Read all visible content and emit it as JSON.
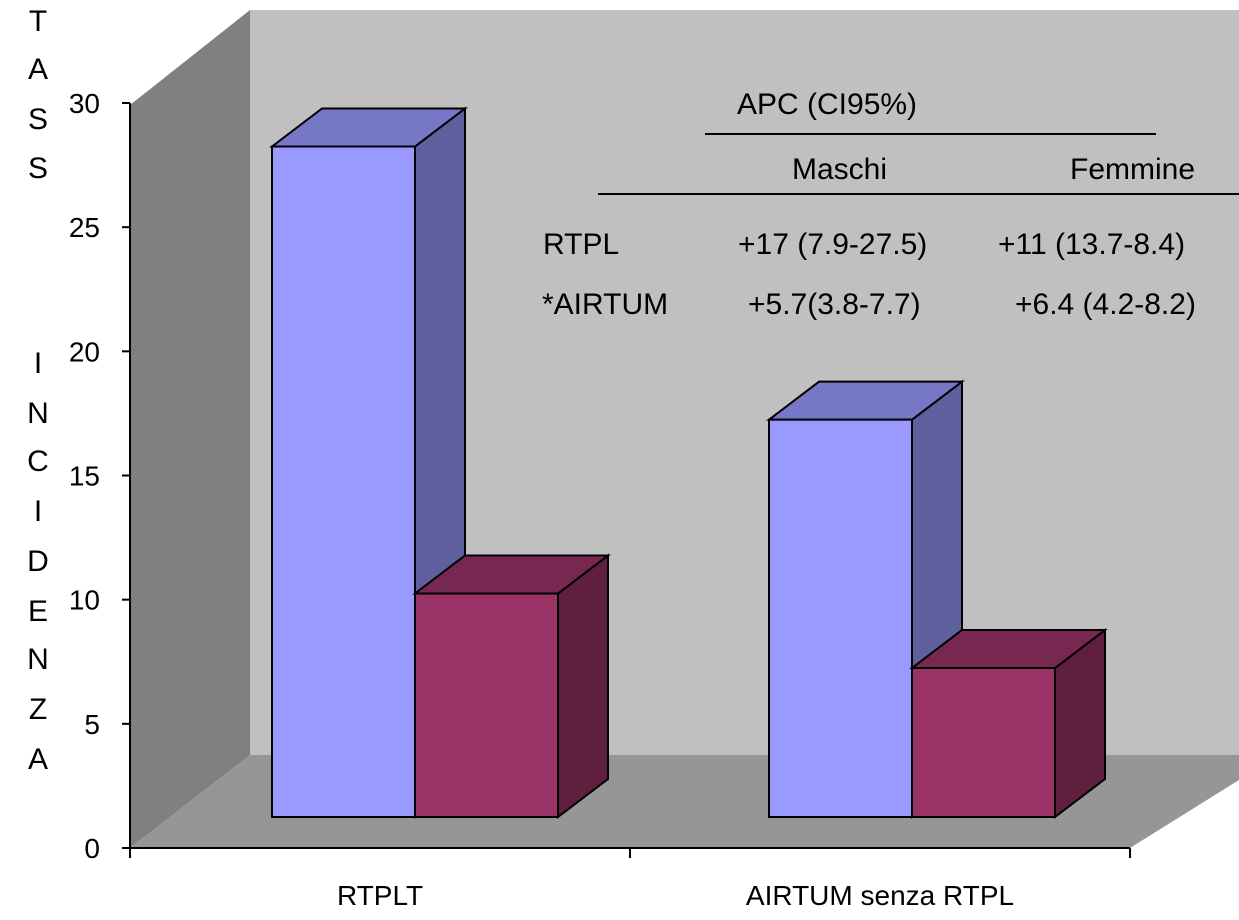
{
  "colors": {
    "series_1": "#9999ff",
    "series_2": "#993366",
    "wall": "#c0c0c0",
    "side_wall": "#808080",
    "floor": "#969696"
  },
  "ylabel_letters": [
    "T",
    "A",
    "S",
    "S",
    "",
    "I",
    "N",
    "C",
    "I",
    "D",
    "E",
    "N",
    "Z",
    "A"
  ],
  "chart_data": {
    "type": "bar",
    "three_d": true,
    "categories": [
      "RTPLT",
      "AIRTUM senza RTPL"
    ],
    "series": [
      {
        "values": [
          27,
          16
        ]
      },
      {
        "values": [
          9,
          6
        ]
      }
    ],
    "ylabel": "TASS INCIDENZA",
    "ylim": [
      0,
      30
    ],
    "yticks": [
      0,
      5,
      10,
      15,
      20,
      25,
      30
    ],
    "grid": false,
    "legend": "none"
  },
  "table": {
    "header": "APC (CI95%)",
    "columns": [
      "Maschi",
      "Femmine"
    ],
    "rows": [
      {
        "label": "RTPL",
        "maschi": "+17 (7.9-27.5)",
        "femmine": "+11 (13.7-8.4)"
      },
      {
        "label": "*AIRTUM",
        "maschi": "+5.7(3.8-7.7)",
        "femmine": "+6.4 (4.2-8.2)"
      }
    ]
  }
}
